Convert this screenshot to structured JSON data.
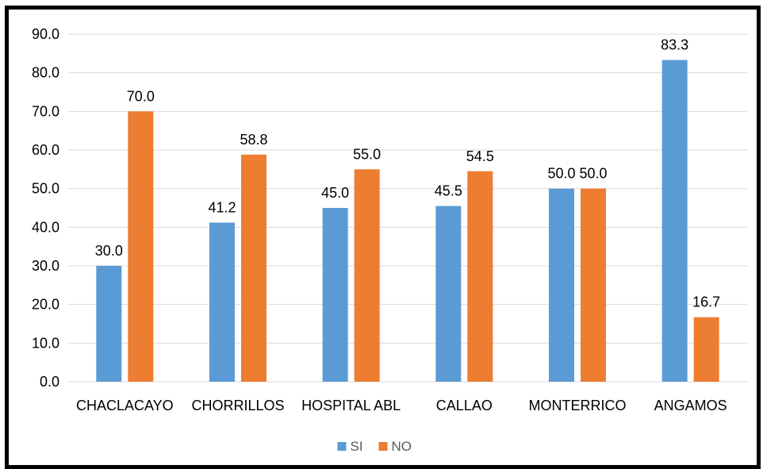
{
  "chart_data": {
    "type": "bar",
    "title": "",
    "xlabel": "",
    "ylabel": "",
    "categories": [
      "CHACLACAYO",
      "CHORRILLOS",
      "HOSPITAL ABL",
      "CALLAO",
      "MONTERRICO",
      "ANGAMOS"
    ],
    "series": [
      {
        "name": "SI",
        "color": "#5B9BD5",
        "values": [
          30.0,
          41.2,
          45.0,
          45.5,
          50.0,
          83.3
        ],
        "labels": [
          "30.0",
          "41.2",
          "45.0",
          "45.5",
          "50.0",
          "83.3"
        ]
      },
      {
        "name": "NO",
        "color": "#ED7D31",
        "values": [
          70.0,
          58.8,
          55.0,
          54.5,
          50.0,
          16.7
        ],
        "labels": [
          "70.0",
          "58.8",
          "55.0",
          "54.5",
          "50.0",
          "16.7"
        ]
      }
    ],
    "ylim": [
      0,
      90
    ],
    "yticks": [
      0,
      10,
      20,
      30,
      40,
      50,
      60,
      70,
      80,
      90
    ],
    "ytick_labels": [
      "0.0",
      "10.0",
      "20.0",
      "30.0",
      "40.0",
      "50.0",
      "60.0",
      "70.0",
      "80.0",
      "90.0"
    ],
    "grid": true,
    "legend_position": "bottom",
    "colors": {
      "grid": "#D9D9D9",
      "text": "#000000",
      "border": "#000000"
    }
  }
}
